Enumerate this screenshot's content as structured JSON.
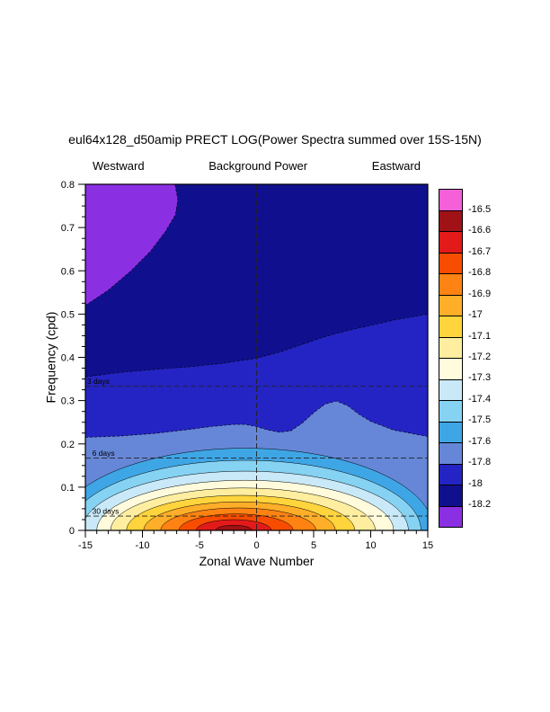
{
  "page_title": "eul64x128_d50amip PRECT LOG(Power Spectra summed over 15S-15N)",
  "headers": {
    "left": "Westward",
    "center": "Background Power",
    "right": "Eastward"
  },
  "axes": {
    "x_label": "Zonal Wave Number",
    "y_label": "Frequency (cpd)",
    "x_ticks": [
      -15,
      -10,
      -5,
      0,
      5,
      10,
      15
    ],
    "x_tick_labels": [
      "-15",
      "-10",
      "-5",
      "0",
      "5",
      "10",
      "15"
    ],
    "y_ticks": [
      0,
      0.1,
      0.2,
      0.3,
      0.4,
      0.5,
      0.6,
      0.7,
      0.8
    ],
    "y_tick_labels": [
      "0",
      "0.1",
      "0.2",
      "0.3",
      "0.4",
      "0.5",
      "0.6",
      "0.7",
      "0.8"
    ]
  },
  "colorbar": {
    "labels_top_to_bottom": [
      "-16.5",
      "-16.6",
      "-16.7",
      "-16.8",
      "-16.9",
      "-17",
      "-17.1",
      "-17.2",
      "-17.3",
      "-17.4",
      "-17.5",
      "-17.6",
      "-17.8",
      "-18",
      "-18.2"
    ]
  },
  "chart_data": {
    "type": "heatmap",
    "title": "eul64x128_d50amip PRECT LOG(Power Spectra summed over 15S-15N)",
    "subtitle_left": "Westward",
    "subtitle_center": "Background Power",
    "subtitle_right": "Eastward",
    "xlabel": "Zonal Wave Number",
    "ylabel": "Frequency (cpd)",
    "xlim": [
      -15,
      15
    ],
    "ylim": [
      0,
      0.8
    ],
    "grid": false,
    "legend_position": "right-colorbar",
    "contour_levels": [
      -18.2,
      -18,
      -17.8,
      -17.6,
      -17.5,
      -17.4,
      -17.3,
      -17.2,
      -17.1,
      -17,
      -16.9,
      -16.8,
      -16.7,
      -16.6,
      -16.5
    ],
    "palette": [
      "#8b2fe3",
      "#10108f",
      "#2424c4",
      "#6687d8",
      "#3fa6e6",
      "#85d2f2",
      "#c9e9f8",
      "#fffbdc",
      "#ffeea0",
      "#ffd43c",
      "#ffae2a",
      "#ff8312",
      "#f84d00",
      "#e31a1a",
      "#a01216",
      "#f55fd7"
    ],
    "background_color_index": 1,
    "regions": [
      {
        "name": "low-power-purple-region",
        "color_index": 0,
        "boundary": [
          [
            -15,
            0.52
          ],
          [
            -13,
            0.555
          ],
          [
            -11,
            0.6
          ],
          [
            -9.3,
            0.645
          ],
          [
            -8.0,
            0.69
          ],
          [
            -7.1,
            0.73
          ],
          [
            -6.9,
            0.765
          ],
          [
            -7.15,
            0.8
          ]
        ],
        "close": [
          [
            -15,
            0.8
          ]
        ]
      },
      {
        "name": "navy-region",
        "color_index": 2,
        "boundary": [
          [
            -15,
            0.355
          ],
          [
            -12,
            0.365
          ],
          [
            -9,
            0.372
          ],
          [
            -6,
            0.378
          ],
          [
            -3,
            0.386
          ],
          [
            0,
            0.398
          ],
          [
            2,
            0.412
          ],
          [
            4,
            0.43
          ],
          [
            6,
            0.448
          ],
          [
            8,
            0.462
          ],
          [
            10,
            0.474
          ],
          [
            12,
            0.486
          ],
          [
            15,
            0.5
          ]
        ],
        "close": [
          [
            15,
            0
          ],
          [
            -15,
            0
          ]
        ]
      },
      {
        "name": "steel-blue-band",
        "color_index": 3,
        "boundary": [
          [
            -15,
            0.215
          ],
          [
            -12,
            0.218
          ],
          [
            -9,
            0.224
          ],
          [
            -6,
            0.233
          ],
          [
            -4,
            0.24
          ],
          [
            -2,
            0.245
          ],
          [
            -1,
            0.245
          ],
          [
            0,
            0.24
          ],
          [
            1,
            0.232
          ],
          [
            2,
            0.227
          ],
          [
            3,
            0.23
          ],
          [
            4,
            0.248
          ],
          [
            5,
            0.272
          ],
          [
            6,
            0.292
          ],
          [
            7,
            0.299
          ],
          [
            8,
            0.288
          ],
          [
            9,
            0.268
          ],
          [
            10,
            0.252
          ],
          [
            12,
            0.232
          ],
          [
            15,
            0.217
          ]
        ],
        "close": [
          [
            15,
            0
          ],
          [
            -15,
            0
          ]
        ]
      }
    ],
    "peak_bands": [
      {
        "color_index": 4,
        "cx": -1.0,
        "rx": 16.5,
        "ry": 0.19
      },
      {
        "color_index": 5,
        "cx": -1.0,
        "rx": 15.4,
        "ry": 0.162
      },
      {
        "color_index": 6,
        "cx": -1.0,
        "rx": 14.3,
        "ry": 0.137
      },
      {
        "color_index": 7,
        "cx": -1.0,
        "rx": 13.0,
        "ry": 0.116
      },
      {
        "color_index": 8,
        "cx": -1.2,
        "rx": 11.6,
        "ry": 0.098
      },
      {
        "color_index": 9,
        "cx": -1.4,
        "rx": 10.0,
        "ry": 0.081
      },
      {
        "color_index": 10,
        "cx": -1.5,
        "rx": 8.4,
        "ry": 0.066
      },
      {
        "color_index": 11,
        "cx": -1.6,
        "rx": 6.8,
        "ry": 0.052
      },
      {
        "color_index": 12,
        "cx": -1.8,
        "rx": 5.0,
        "ry": 0.038
      },
      {
        "color_index": 13,
        "cx": -2.0,
        "rx": 3.3,
        "ry": 0.025
      },
      {
        "color_index": 14,
        "cx": -2.0,
        "rx": 1.6,
        "ry": 0.012
      }
    ],
    "peak": {
      "zonal_wavenumber": -2,
      "frequency_cpd": 0.02,
      "value_band": "-16.6 to -16.5"
    },
    "reference_lines": [
      {
        "label": "3 days",
        "freq": 0.333,
        "label_x": -14.85
      },
      {
        "label": "6 days",
        "freq": 0.167,
        "label_x": -14.4
      },
      {
        "label": "30 days",
        "freq": 0.033,
        "label_x": -14.4
      }
    ],
    "vertical_reference_x": 0
  }
}
